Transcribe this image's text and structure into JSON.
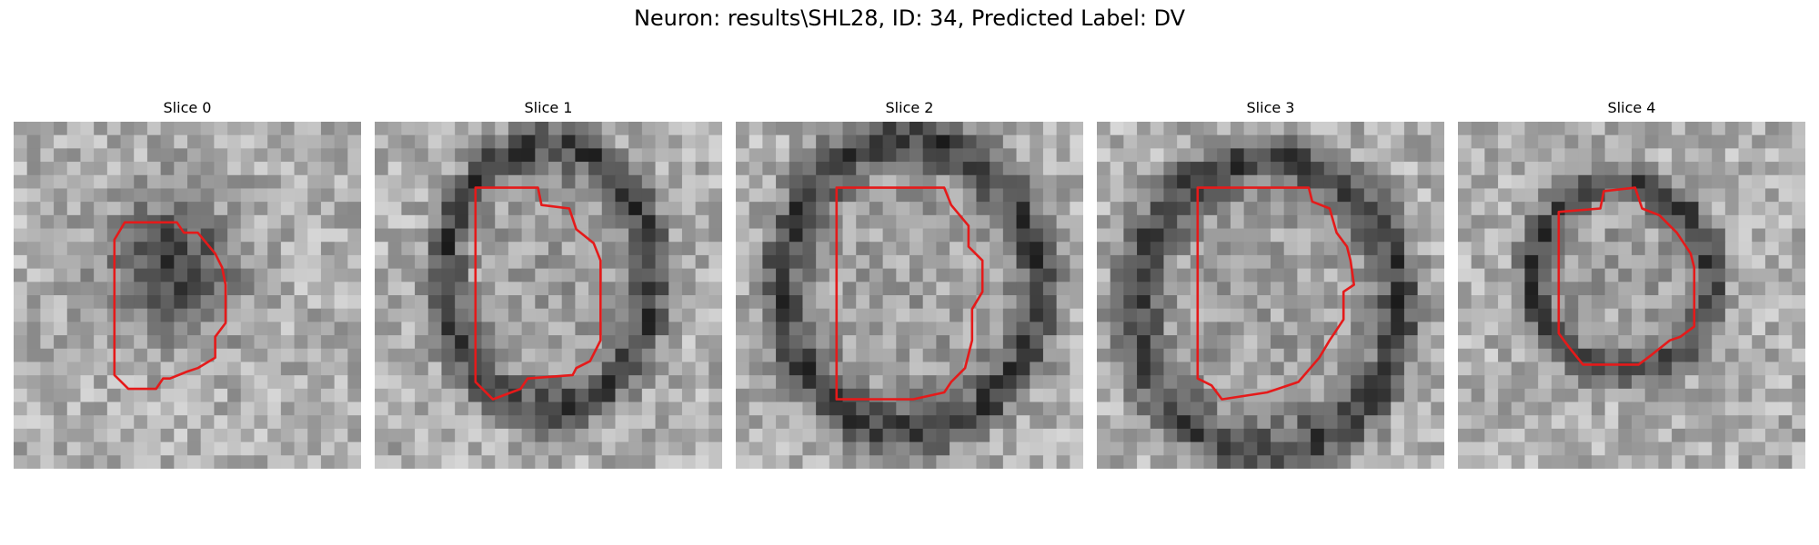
{
  "title": "Neuron: results\\SHL28, ID: 34, Predicted Label: DV",
  "colors": {
    "contour": "#e51a1a",
    "background": "#ffffff"
  },
  "slices": [
    {
      "label": "Slice 0",
      "blob": [
        0.45,
        0.42,
        0.22,
        0.25
      ],
      "ring": false,
      "seed": 11,
      "contour": [
        [
          0.29,
          0.34
        ],
        [
          0.32,
          0.29
        ],
        [
          0.47,
          0.29
        ],
        [
          0.49,
          0.32
        ],
        [
          0.53,
          0.32
        ],
        [
          0.58,
          0.38
        ],
        [
          0.6,
          0.42
        ],
        [
          0.61,
          0.47
        ],
        [
          0.61,
          0.58
        ],
        [
          0.58,
          0.62
        ],
        [
          0.58,
          0.68
        ],
        [
          0.53,
          0.71
        ],
        [
          0.5,
          0.72
        ],
        [
          0.45,
          0.74
        ],
        [
          0.43,
          0.74
        ],
        [
          0.41,
          0.77
        ],
        [
          0.33,
          0.77
        ],
        [
          0.29,
          0.73
        ]
      ]
    },
    {
      "label": "Slice 1",
      "blob": [
        0.5,
        0.45,
        0.3,
        0.38
      ],
      "ring": true,
      "seed": 23,
      "contour": [
        [
          0.29,
          0.19
        ],
        [
          0.47,
          0.19
        ],
        [
          0.48,
          0.24
        ],
        [
          0.56,
          0.25
        ],
        [
          0.58,
          0.31
        ],
        [
          0.63,
          0.35
        ],
        [
          0.65,
          0.4
        ],
        [
          0.65,
          0.63
        ],
        [
          0.62,
          0.69
        ],
        [
          0.58,
          0.71
        ],
        [
          0.57,
          0.73
        ],
        [
          0.44,
          0.74
        ],
        [
          0.42,
          0.77
        ],
        [
          0.34,
          0.8
        ],
        [
          0.29,
          0.75
        ]
      ]
    },
    {
      "label": "Slice 2",
      "blob": [
        0.5,
        0.47,
        0.37,
        0.42
      ],
      "ring": true,
      "seed": 37,
      "contour": [
        [
          0.29,
          0.19
        ],
        [
          0.6,
          0.19
        ],
        [
          0.62,
          0.24
        ],
        [
          0.67,
          0.3
        ],
        [
          0.67,
          0.36
        ],
        [
          0.71,
          0.4
        ],
        [
          0.71,
          0.49
        ],
        [
          0.68,
          0.54
        ],
        [
          0.68,
          0.63
        ],
        [
          0.66,
          0.71
        ],
        [
          0.62,
          0.75
        ],
        [
          0.6,
          0.78
        ],
        [
          0.51,
          0.8
        ],
        [
          0.29,
          0.8
        ]
      ]
    },
    {
      "label": "Slice 3",
      "blob": [
        0.49,
        0.53,
        0.38,
        0.42
      ],
      "ring": true,
      "seed": 41,
      "contour": [
        [
          0.29,
          0.19
        ],
        [
          0.61,
          0.19
        ],
        [
          0.62,
          0.23
        ],
        [
          0.67,
          0.25
        ],
        [
          0.69,
          0.32
        ],
        [
          0.72,
          0.36
        ],
        [
          0.73,
          0.4
        ],
        [
          0.74,
          0.47
        ],
        [
          0.71,
          0.49
        ],
        [
          0.71,
          0.57
        ],
        [
          0.69,
          0.6
        ],
        [
          0.67,
          0.63
        ],
        [
          0.64,
          0.68
        ],
        [
          0.58,
          0.75
        ],
        [
          0.49,
          0.78
        ],
        [
          0.36,
          0.8
        ],
        [
          0.33,
          0.76
        ],
        [
          0.29,
          0.74
        ]
      ]
    },
    {
      "label": "Slice 4",
      "blob": [
        0.47,
        0.45,
        0.26,
        0.27
      ],
      "ring": true,
      "seed": 53,
      "contour": [
        [
          0.29,
          0.26
        ],
        [
          0.41,
          0.25
        ],
        [
          0.42,
          0.2
        ],
        [
          0.51,
          0.19
        ],
        [
          0.53,
          0.25
        ],
        [
          0.58,
          0.27
        ],
        [
          0.63,
          0.32
        ],
        [
          0.67,
          0.38
        ],
        [
          0.68,
          0.42
        ],
        [
          0.68,
          0.59
        ],
        [
          0.64,
          0.62
        ],
        [
          0.61,
          0.63
        ],
        [
          0.56,
          0.67
        ],
        [
          0.52,
          0.7
        ],
        [
          0.36,
          0.7
        ],
        [
          0.32,
          0.65
        ],
        [
          0.29,
          0.61
        ]
      ]
    }
  ]
}
